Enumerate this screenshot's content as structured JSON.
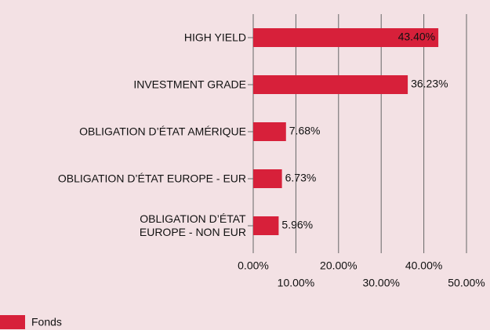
{
  "chart_data": {
    "type": "bar",
    "orientation": "horizontal",
    "categories": [
      "HIGH YIELD",
      "INVESTMENT GRADE",
      "OBLIGATION D’ÉTAT AMÉRIQUE",
      "OBLIGATION D’ÉTAT EUROPE - EUR",
      "OBLIGATION D’ÉTAT\nEUROPE - NON EUR"
    ],
    "series": [
      {
        "name": "Fonds",
        "color": "#d7203a",
        "values": [
          43.4,
          36.23,
          7.68,
          6.73,
          5.96
        ],
        "value_labels": [
          "43.40%",
          "36.23%",
          "7.68%",
          "6.73%",
          "5.96%"
        ]
      }
    ],
    "xlim": [
      0,
      50
    ],
    "xticks": [
      {
        "value": 0,
        "label": "0.00%"
      },
      {
        "value": 10,
        "label": "10.00%"
      },
      {
        "value": 20,
        "label": "20.00%"
      },
      {
        "value": 30,
        "label": "30.00%"
      },
      {
        "value": 40,
        "label": "40.00%"
      },
      {
        "value": 50,
        "label": "50.00%"
      }
    ],
    "grid": true,
    "legend": "bottom-left"
  }
}
